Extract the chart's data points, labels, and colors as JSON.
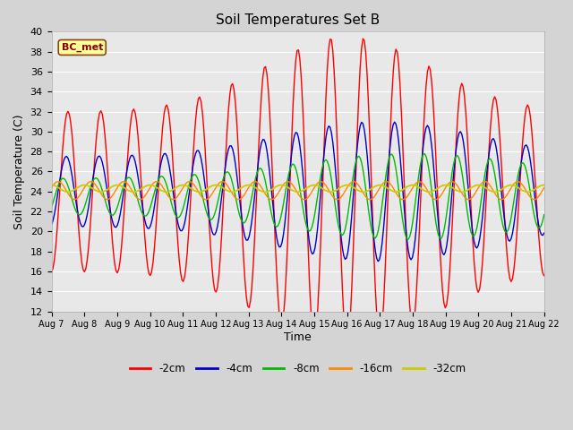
{
  "title": "Soil Temperatures Set B",
  "xlabel": "Time",
  "ylabel": "Soil Temperature (C)",
  "ylim": [
    12,
    40
  ],
  "line_colors": {
    "-2cm": "#ff0000",
    "-4cm": "#0000cc",
    "-8cm": "#00bb00",
    "-16cm": "#ff8800",
    "-32cm": "#cccc00"
  },
  "legend_label": "BC_met",
  "legend_label_color": "#8B0000",
  "legend_label_bg": "#ffff99",
  "fig_bg_color": "#d4d4d4",
  "plot_bg_color": "#e8e8e8",
  "grid_color": "#ffffff"
}
